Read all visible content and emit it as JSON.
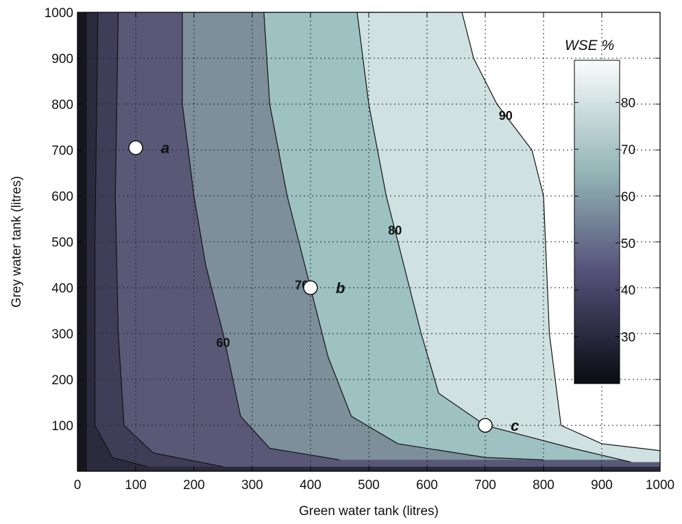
{
  "chart_data": {
    "type": "contour",
    "xlabel": "Green water tank (litres)",
    "ylabel": "Grey water tank (litres)",
    "xlim": [
      0,
      1000
    ],
    "ylim": [
      0,
      1000
    ],
    "x_ticks": [
      "0",
      "100",
      "200",
      "300",
      "400",
      "500",
      "600",
      "700",
      "800",
      "900",
      "1000"
    ],
    "y_ticks": [
      "100",
      "200",
      "300",
      "400",
      "500",
      "600",
      "700",
      "800",
      "900",
      "1000"
    ],
    "grid": true,
    "colorbar": {
      "title": "WSE %",
      "range": [
        20,
        89
      ],
      "ticks": [
        "30",
        "40",
        "50",
        "60",
        "70",
        "80"
      ],
      "placement": "inside-right"
    },
    "contours": [
      {
        "level": 30,
        "label": "",
        "points": [
          [
            15,
            1000
          ],
          [
            15,
            0
          ]
        ]
      },
      {
        "level": 40,
        "label": "",
        "points": [
          [
            35,
            1000
          ],
          [
            30,
            500
          ],
          [
            30,
            100
          ],
          [
            60,
            30
          ],
          [
            120,
            10
          ]
        ]
      },
      {
        "level": 50,
        "label": "",
        "points": [
          [
            70,
            1000
          ],
          [
            65,
            600
          ],
          [
            70,
            300
          ],
          [
            80,
            100
          ],
          [
            130,
            40
          ],
          [
            250,
            10
          ]
        ]
      },
      {
        "level": 60,
        "label": "60",
        "points": [
          [
            180,
            1000
          ],
          [
            180,
            800
          ],
          [
            200,
            600
          ],
          [
            220,
            450
          ],
          [
            250,
            300
          ],
          [
            280,
            120
          ],
          [
            330,
            50
          ],
          [
            450,
            25
          ]
        ]
      },
      {
        "level": 70,
        "label": "70",
        "points": [
          [
            320,
            1000
          ],
          [
            330,
            800
          ],
          [
            360,
            600
          ],
          [
            400,
            400
          ],
          [
            430,
            250
          ],
          [
            470,
            120
          ],
          [
            550,
            60
          ],
          [
            700,
            30
          ],
          [
            800,
            25
          ]
        ]
      },
      {
        "level": 80,
        "label": "80",
        "points": [
          [
            480,
            1000
          ],
          [
            500,
            800
          ],
          [
            530,
            600
          ],
          [
            560,
            450
          ],
          [
            590,
            300
          ],
          [
            620,
            170
          ],
          [
            700,
            100
          ],
          [
            850,
            50
          ],
          [
            950,
            20
          ]
        ]
      },
      {
        "level": 90,
        "label": "90",
        "points": [
          [
            660,
            1000
          ],
          [
            680,
            900
          ],
          [
            720,
            800
          ],
          [
            780,
            700
          ],
          [
            800,
            600
          ],
          [
            810,
            300
          ],
          [
            830,
            100
          ],
          [
            900,
            60
          ],
          [
            1000,
            45
          ]
        ]
      }
    ],
    "contour_label_positions": [
      {
        "label": "60",
        "x": 250,
        "y": 280
      },
      {
        "label": "70",
        "x": 385,
        "y": 405
      },
      {
        "label": "80",
        "x": 545,
        "y": 525
      },
      {
        "label": "90",
        "x": 735,
        "y": 775
      }
    ],
    "points": [
      {
        "label": "a",
        "x": 100,
        "y": 705
      },
      {
        "label": "b",
        "x": 400,
        "y": 400
      },
      {
        "label": "c",
        "x": 700,
        "y": 100
      }
    ]
  }
}
